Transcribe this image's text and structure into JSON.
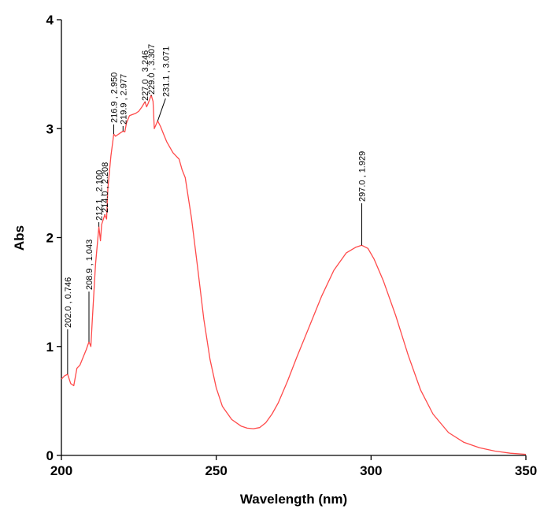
{
  "chart_data": {
    "type": "line",
    "title": "",
    "xlabel": "Wavelength (nm)",
    "ylabel": "Abs",
    "xlim": [
      200,
      350
    ],
    "ylim": [
      0,
      4
    ],
    "x_ticks": [
      "200",
      "250",
      "300",
      "350"
    ],
    "y_ticks": [
      "0",
      "1",
      "2",
      "3",
      "4"
    ],
    "grid": false,
    "colors": {
      "curve": "#ff4a4a",
      "axes": "#000000"
    },
    "series": [
      {
        "x": [
          200,
          201,
          202,
          203,
          204,
          205,
          206,
          207,
          208,
          208.9,
          209.5,
          210,
          211,
          212.1,
          212.6,
          213,
          214,
          214.6,
          215,
          216,
          216.9,
          217.5,
          218,
          219,
          219.9,
          220.5,
          221,
          222,
          223,
          224,
          225,
          226,
          227,
          227.5,
          228,
          229,
          229.6,
          230,
          231.1,
          232,
          233,
          234,
          235,
          236,
          237,
          238,
          239,
          240,
          242,
          244,
          246,
          248,
          250,
          252,
          255,
          258,
          260,
          262,
          264,
          266,
          268,
          270,
          273,
          276,
          280,
          284,
          288,
          292,
          295,
          297,
          299,
          301,
          304,
          308,
          312,
          316,
          320,
          325,
          330,
          335,
          340,
          345,
          350
        ],
        "y": [
          0.7,
          0.73,
          0.746,
          0.66,
          0.64,
          0.8,
          0.83,
          0.9,
          0.97,
          1.043,
          1.0,
          1.25,
          1.75,
          2.1,
          1.97,
          2.12,
          2.208,
          2.17,
          2.45,
          2.75,
          2.95,
          2.93,
          2.94,
          2.96,
          2.977,
          2.97,
          3.05,
          3.12,
          3.13,
          3.14,
          3.16,
          3.2,
          3.246,
          3.2,
          3.23,
          3.307,
          3.25,
          3.0,
          3.071,
          3.02,
          2.95,
          2.88,
          2.83,
          2.78,
          2.75,
          2.72,
          2.62,
          2.55,
          2.18,
          1.72,
          1.25,
          0.88,
          0.62,
          0.45,
          0.33,
          0.27,
          0.25,
          0.245,
          0.255,
          0.3,
          0.38,
          0.48,
          0.68,
          0.9,
          1.18,
          1.46,
          1.7,
          1.86,
          1.91,
          1.929,
          1.9,
          1.8,
          1.6,
          1.28,
          0.92,
          0.6,
          0.38,
          0.21,
          0.12,
          0.07,
          0.04,
          0.02,
          0.01
        ]
      }
    ],
    "annotations": [
      {
        "x": 202.0,
        "y": 0.746,
        "text": "202.0 , 0.746"
      },
      {
        "x": 208.9,
        "y": 1.043,
        "text": "208.9 , 1.043"
      },
      {
        "x": 212.1,
        "y": 2.1,
        "text": "212.1 , 2.100"
      },
      {
        "x": 214.0,
        "y": 2.208,
        "text": "214.0 , 2.208"
      },
      {
        "x": 216.9,
        "y": 2.95,
        "text": "216.9 , 2.950"
      },
      {
        "x": 219.9,
        "y": 2.977,
        "text": "219.9 , 2.977"
      },
      {
        "x": 227.0,
        "y": 3.246,
        "text": "227.0 , 3.246"
      },
      {
        "x": 229.0,
        "y": 3.307,
        "text": "229.0 , 3.307"
      },
      {
        "x": 231.1,
        "y": 3.071,
        "text": "231.1 , 3.071"
      },
      {
        "x": 297.0,
        "y": 1.929,
        "text": "297.0 , 1.929"
      }
    ]
  }
}
